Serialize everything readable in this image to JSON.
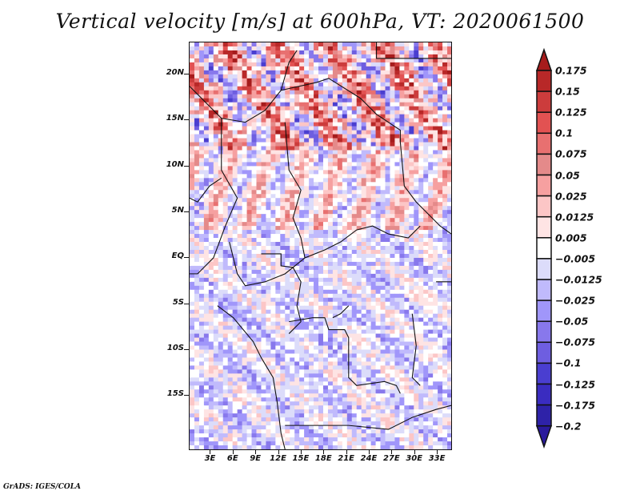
{
  "title": "Vertical velocity [m/s] at 600hPa, VT: 2020061500",
  "credit": "GrADS: IGES/COLA",
  "map": {
    "variable": "Vertical velocity",
    "units": "m/s",
    "level": "600hPa",
    "valid_time": "2020061500",
    "lat_labels": [
      "20N",
      "15N",
      "10N",
      "5N",
      "EQ",
      "5S",
      "10S",
      "15S"
    ],
    "lat_values": [
      20,
      15,
      10,
      5,
      0,
      -5,
      -10,
      -15
    ],
    "lon_labels": [
      "3E",
      "6E",
      "9E",
      "12E",
      "15E",
      "18E",
      "21E",
      "24E",
      "27E",
      "30E",
      "33E"
    ],
    "lon_values": [
      3,
      6,
      9,
      12,
      15,
      18,
      21,
      24,
      27,
      30,
      33
    ],
    "lat_range": [
      -20,
      25
    ],
    "lon_range": [
      0,
      35
    ]
  },
  "colorbar": {
    "labels": [
      "0.175",
      "0.15",
      "0.125",
      "0.1",
      "0.075",
      "0.05",
      "0.025",
      "0.0125",
      "0.005",
      "−0.005",
      "−0.0125",
      "−0.025",
      "−0.05",
      "−0.075",
      "−0.1",
      "−0.125",
      "−0.175",
      "−0.2"
    ],
    "colors": [
      "#a61c1c",
      "#b82828",
      "#cc3c3c",
      "#e25252",
      "#e87070",
      "#e48a8a",
      "#f6a0a0",
      "#fcc6c6",
      "#fee4e4",
      "#ffffff",
      "#dcdcfa",
      "#c0bafc",
      "#a096fa",
      "#8878ec",
      "#6e5ee0",
      "#4a3ed0",
      "#3a2cc0",
      "#2e22a8",
      "#2a1a9c"
    ]
  }
}
